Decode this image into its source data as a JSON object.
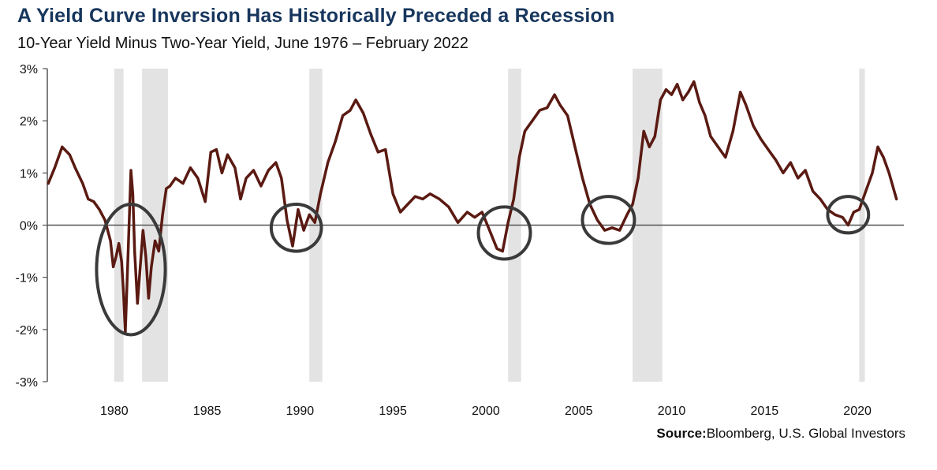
{
  "title": "A Yield Curve Inversion Has Historically Preceded a Recession",
  "subtitle": "10-Year Yield Minus Two-Year Yield, June 1976 – February 2022",
  "source": {
    "label": "Source:",
    "text": "Bloomberg, U.S. Global Investors"
  },
  "colors": {
    "line": "#5a1a12",
    "recession": "#e3e3e3",
    "circle": "#3a3a3a",
    "axis": "#555555"
  },
  "chart_data": {
    "type": "line",
    "title": "A Yield Curve Inversion Has Historically Preceded a Recession",
    "subtitle": "10-Year Yield Minus Two-Year Yield, June 1976 – February 2022",
    "xlabel": "",
    "ylabel": "",
    "xlim": [
      1976.4,
      2022.5
    ],
    "ylim": [
      -3,
      3
    ],
    "y_ticks": [
      3,
      2,
      1,
      0,
      -1,
      -2,
      -3
    ],
    "y_tick_labels": [
      "3%",
      "2%",
      "1%",
      "0%",
      "-1%",
      "-2%",
      "-3%"
    ],
    "x_ticks": [
      1980,
      1985,
      1990,
      1995,
      2000,
      2005,
      2010,
      2015,
      2020
    ],
    "x_tick_labels": [
      "1980",
      "1985",
      "1990",
      "1995",
      "2000",
      "2005",
      "2010",
      "2015",
      "2020"
    ],
    "recessions": [
      [
        1980.0,
        1980.5
      ],
      [
        1981.5,
        1982.9
      ],
      [
        1990.5,
        1991.2
      ],
      [
        2001.2,
        2001.9
      ],
      [
        2007.9,
        2009.5
      ],
      [
        2020.1,
        2020.4
      ]
    ],
    "highlighted_inversions": [
      {
        "center": [
          1980.9,
          -0.85
        ],
        "rx_years": 1.85,
        "ry_pct": 1.25
      },
      {
        "center": [
          1989.8,
          -0.05
        ],
        "rx_years": 1.35,
        "ry_pct": 0.45
      },
      {
        "center": [
          2001.0,
          -0.15
        ],
        "rx_years": 1.4,
        "ry_pct": 0.5
      },
      {
        "center": [
          2006.6,
          0.1
        ],
        "rx_years": 1.4,
        "ry_pct": 0.45
      },
      {
        "center": [
          2019.5,
          0.2
        ],
        "rx_years": 1.1,
        "ry_pct": 0.35
      }
    ],
    "series": [
      {
        "name": "10-Year minus 2-Year Yield (%)",
        "x": [
          1976.45,
          1976.8,
          1977.2,
          1977.6,
          1977.9,
          1978.3,
          1978.6,
          1978.9,
          1979.2,
          1979.5,
          1979.8,
          1979.95,
          1980.1,
          1980.25,
          1980.4,
          1980.5,
          1980.6,
          1980.75,
          1980.9,
          1981.0,
          1981.1,
          1981.25,
          1981.4,
          1981.55,
          1981.7,
          1981.85,
          1982.0,
          1982.2,
          1982.4,
          1982.6,
          1982.8,
          1983.0,
          1983.3,
          1983.7,
          1984.1,
          1984.5,
          1984.9,
          1985.2,
          1985.5,
          1985.8,
          1986.1,
          1986.5,
          1986.8,
          1987.1,
          1987.5,
          1987.9,
          1988.3,
          1988.7,
          1989.0,
          1989.3,
          1989.6,
          1989.9,
          1990.2,
          1990.5,
          1990.8,
          1991.1,
          1991.5,
          1991.9,
          1992.3,
          1992.7,
          1993.0,
          1993.4,
          1993.8,
          1994.2,
          1994.6,
          1995.0,
          1995.4,
          1995.8,
          1996.2,
          1996.6,
          1997.0,
          1997.5,
          1998.0,
          1998.5,
          1999.0,
          1999.4,
          1999.8,
          2000.2,
          2000.6,
          2000.9,
          2001.2,
          2001.5,
          2001.8,
          2002.1,
          2002.5,
          2002.9,
          2003.3,
          2003.7,
          2004.0,
          2004.4,
          2004.8,
          2005.2,
          2005.6,
          2006.0,
          2006.4,
          2006.8,
          2007.2,
          2007.6,
          2007.9,
          2008.2,
          2008.5,
          2008.8,
          2009.1,
          2009.4,
          2009.7,
          2010.0,
          2010.3,
          2010.6,
          2010.9,
          2011.2,
          2011.5,
          2011.8,
          2012.1,
          2012.5,
          2012.9,
          2013.3,
          2013.7,
          2014.0,
          2014.4,
          2014.8,
          2015.2,
          2015.6,
          2016.0,
          2016.4,
          2016.8,
          2017.2,
          2017.6,
          2018.0,
          2018.4,
          2018.8,
          2019.2,
          2019.5,
          2019.8,
          2020.1,
          2020.4,
          2020.8,
          2021.1,
          2021.4,
          2021.7,
          2022.1
        ],
        "values": [
          0.8,
          1.1,
          1.5,
          1.35,
          1.1,
          0.8,
          0.5,
          0.45,
          0.3,
          0.1,
          -0.3,
          -0.8,
          -0.6,
          -0.35,
          -0.7,
          -1.3,
          -2.05,
          -0.5,
          1.05,
          0.6,
          -0.5,
          -1.5,
          -0.8,
          -0.1,
          -0.6,
          -1.4,
          -0.8,
          -0.3,
          -0.5,
          0.2,
          0.7,
          0.75,
          0.9,
          0.8,
          1.1,
          0.9,
          0.45,
          1.4,
          1.45,
          1.0,
          1.35,
          1.1,
          0.5,
          0.9,
          1.05,
          0.75,
          1.05,
          1.2,
          0.9,
          0.1,
          -0.4,
          0.3,
          -0.1,
          0.2,
          0.05,
          0.6,
          1.2,
          1.6,
          2.1,
          2.2,
          2.4,
          2.15,
          1.75,
          1.4,
          1.45,
          0.6,
          0.25,
          0.4,
          0.55,
          0.5,
          0.6,
          0.5,
          0.35,
          0.05,
          0.25,
          0.15,
          0.25,
          -0.1,
          -0.45,
          -0.5,
          0.05,
          0.5,
          1.3,
          1.8,
          2.0,
          2.2,
          2.25,
          2.5,
          2.3,
          2.1,
          1.5,
          0.9,
          0.4,
          0.1,
          -0.1,
          -0.05,
          -0.1,
          0.2,
          0.4,
          0.9,
          1.8,
          1.5,
          1.7,
          2.4,
          2.6,
          2.5,
          2.7,
          2.4,
          2.55,
          2.75,
          2.35,
          2.1,
          1.7,
          1.5,
          1.3,
          1.8,
          2.55,
          2.3,
          1.9,
          1.65,
          1.45,
          1.25,
          1.0,
          1.2,
          0.9,
          1.05,
          0.65,
          0.5,
          0.3,
          0.2,
          0.15,
          0.0,
          0.25,
          0.3,
          0.6,
          1.0,
          1.5,
          1.3,
          1.0,
          0.5
        ]
      }
    ]
  }
}
